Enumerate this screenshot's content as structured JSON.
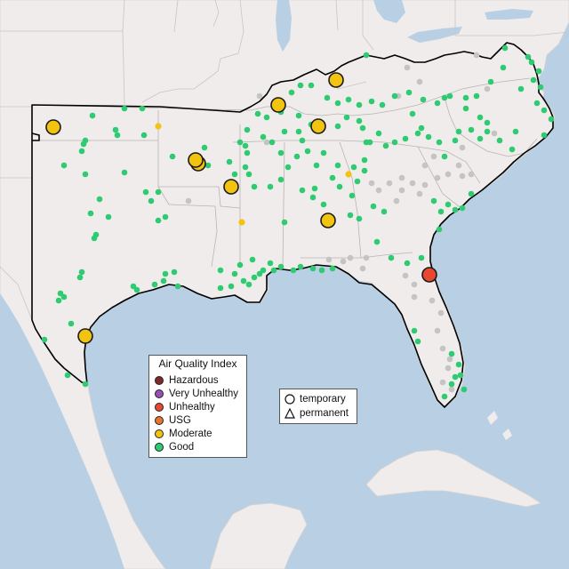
{
  "legend": {
    "title": "Air Quality Index",
    "categories": [
      {
        "label": "Hazardous",
        "color": "#7e2a2a"
      },
      {
        "label": "Very Unhealthy",
        "color": "#9a4fb8"
      },
      {
        "label": "Unhealthy",
        "color": "#e8482f"
      },
      {
        "label": "USG",
        "color": "#e8752b"
      },
      {
        "label": "Moderate",
        "color": "#f2c40f"
      },
      {
        "label": "Good",
        "color": "#2ecc71"
      }
    ],
    "monitor_types": [
      {
        "label": "temporary",
        "icon": "circle-icon"
      },
      {
        "label": "permanent",
        "icon": "triangle-icon"
      }
    ]
  },
  "colors": {
    "ocean": "#b9cfe3",
    "land": "#efeceb",
    "region_outline": "#000000",
    "no_data": "#c4c4c4"
  }
}
